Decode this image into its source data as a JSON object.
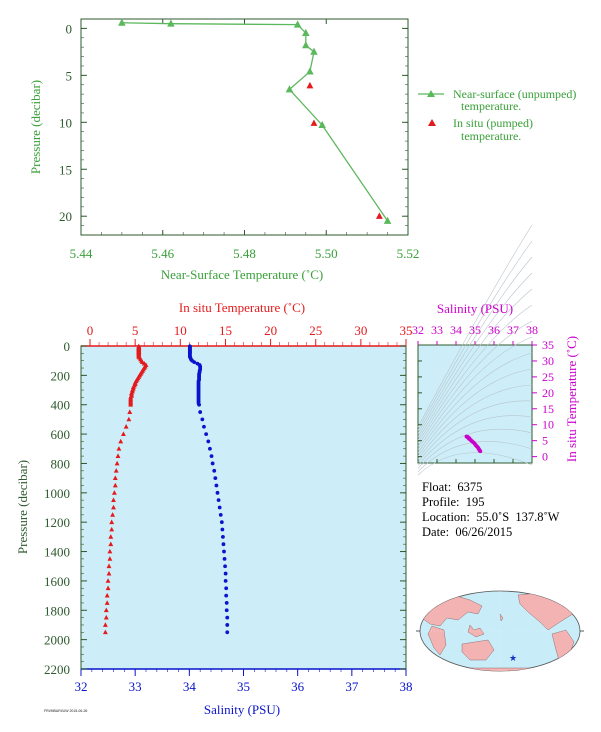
{
  "colors": {
    "green": "#5cb85c",
    "green_text": "#39a039",
    "axis_dark": "#2e5a2e",
    "red": "#e41a1c",
    "blue": "#0a14cc",
    "magenta": "#cc00cc",
    "plot_bg": "#cdeef8",
    "land": "#f4b3b3",
    "ocean": "#c8ecf8"
  },
  "chart_data": [
    {
      "id": "near_surface",
      "type": "scatter",
      "xlabel": "Near-Surface Temperature (˚C)",
      "ylabel": "Pressure (decibar)",
      "xlim": [
        5.44,
        5.52
      ],
      "ylim": [
        22,
        -1
      ],
      "x_ticks": [
        "5.44",
        "5.46",
        "5.48",
        "5.50",
        "5.52"
      ],
      "y_ticks": [
        "0",
        "5",
        "10",
        "15",
        "20"
      ],
      "series": [
        {
          "name": "Near-surface (unpumped) temperature.",
          "marker": "triangle-line",
          "points": [
            [
              5.45,
              -0.6
            ],
            [
              5.462,
              -0.5
            ],
            [
              5.493,
              -0.4
            ],
            [
              5.495,
              0.5
            ],
            [
              5.495,
              1.8
            ],
            [
              5.497,
              2.5
            ],
            [
              5.496,
              4.6
            ],
            [
              5.491,
              6.5
            ],
            [
              5.499,
              10.3
            ],
            [
              5.515,
              20.5
            ]
          ]
        },
        {
          "name": "In situ (pumped) temperature.",
          "marker": "triangle",
          "points": [
            [
              5.496,
              6.1
            ],
            [
              5.497,
              10.1
            ],
            [
              5.513,
              20.0
            ]
          ]
        }
      ]
    },
    {
      "id": "profile",
      "type": "scatter",
      "top_xlabel": "In situ Temperature (˚C)",
      "bottom_xlabel": "Salinity (PSU)",
      "ylabel": "Pressure (decibar)",
      "temperature_lim": [
        -1,
        35
      ],
      "salinity_lim": [
        32,
        38
      ],
      "ylim": [
        2200,
        0
      ],
      "temperature_ticks": [
        "0",
        "5",
        "10",
        "15",
        "20",
        "25",
        "30",
        "35"
      ],
      "salinity_ticks": [
        "32",
        "33",
        "34",
        "35",
        "36",
        "37",
        "38"
      ],
      "y_ticks": [
        "0",
        "200",
        "400",
        "600",
        "800",
        "1000",
        "1200",
        "1400",
        "1600",
        "1800",
        "2000",
        "2200"
      ],
      "series": [
        {
          "name": "In situ Temperature",
          "axis": "temperature",
          "points": [
            [
              5.4,
              2
            ],
            [
              5.4,
              6
            ],
            [
              5.4,
              10
            ],
            [
              5.4,
              14
            ],
            [
              5.4,
              18
            ],
            [
              5.4,
              22
            ],
            [
              5.4,
              26
            ],
            [
              5.4,
              30
            ],
            [
              5.4,
              34
            ],
            [
              5.4,
              38
            ],
            [
              5.4,
              42
            ],
            [
              5.4,
              46
            ],
            [
              5.4,
              50
            ],
            [
              5.4,
              56
            ],
            [
              5.4,
              62
            ],
            [
              5.4,
              68
            ],
            [
              5.4,
              74
            ],
            [
              5.5,
              80
            ],
            [
              5.6,
              90
            ],
            [
              5.7,
              100
            ],
            [
              5.8,
              110
            ],
            [
              6.0,
              120
            ],
            [
              6.2,
              130
            ],
            [
              6.1,
              140
            ],
            [
              6.0,
              150
            ],
            [
              5.9,
              160
            ],
            [
              5.8,
              170
            ],
            [
              5.7,
              180
            ],
            [
              5.6,
              190
            ],
            [
              5.5,
              200
            ],
            [
              5.4,
              210
            ],
            [
              5.3,
              220
            ],
            [
              5.2,
              230
            ],
            [
              5.1,
              240
            ],
            [
              5.0,
              250
            ],
            [
              5.0,
              260
            ],
            [
              4.9,
              270
            ],
            [
              4.8,
              280
            ],
            [
              4.8,
              290
            ],
            [
              4.7,
              300
            ],
            [
              4.7,
              310
            ],
            [
              4.6,
              320
            ],
            [
              4.6,
              330
            ],
            [
              4.6,
              340
            ],
            [
              4.5,
              350
            ],
            [
              4.5,
              360
            ],
            [
              4.5,
              370
            ],
            [
              4.5,
              380
            ],
            [
              4.5,
              390
            ],
            [
              4.5,
              400
            ],
            [
              4.4,
              450
            ],
            [
              4.3,
              500
            ],
            [
              4.0,
              550
            ],
            [
              3.7,
              600
            ],
            [
              3.4,
              650
            ],
            [
              3.2,
              700
            ],
            [
              3.1,
              750
            ],
            [
              3.0,
              800
            ],
            [
              2.9,
              850
            ],
            [
              2.8,
              900
            ],
            [
              2.8,
              950
            ],
            [
              2.7,
              1000
            ],
            [
              2.6,
              1050
            ],
            [
              2.6,
              1100
            ],
            [
              2.5,
              1150
            ],
            [
              2.4,
              1200
            ],
            [
              2.4,
              1250
            ],
            [
              2.3,
              1300
            ],
            [
              2.3,
              1350
            ],
            [
              2.2,
              1400
            ],
            [
              2.2,
              1450
            ],
            [
              2.1,
              1500
            ],
            [
              2.1,
              1550
            ],
            [
              2.0,
              1600
            ],
            [
              2.0,
              1650
            ],
            [
              1.9,
              1700
            ],
            [
              1.9,
              1750
            ],
            [
              1.8,
              1800
            ],
            [
              1.8,
              1850
            ],
            [
              1.7,
              1900
            ],
            [
              1.7,
              1950
            ]
          ]
        },
        {
          "name": "Salinity",
          "axis": "salinity",
          "points": [
            [
              34.01,
              2
            ],
            [
              34.01,
              6
            ],
            [
              34.01,
              10
            ],
            [
              34.01,
              14
            ],
            [
              34.01,
              18
            ],
            [
              34.01,
              22
            ],
            [
              34.01,
              26
            ],
            [
              34.01,
              30
            ],
            [
              34.01,
              34
            ],
            [
              34.01,
              38
            ],
            [
              34.01,
              42
            ],
            [
              34.01,
              46
            ],
            [
              34.01,
              50
            ],
            [
              34.01,
              56
            ],
            [
              34.01,
              62
            ],
            [
              34.01,
              68
            ],
            [
              34.01,
              74
            ],
            [
              34.02,
              80
            ],
            [
              34.03,
              90
            ],
            [
              34.05,
              100
            ],
            [
              34.09,
              110
            ],
            [
              34.15,
              120
            ],
            [
              34.19,
              130
            ],
            [
              34.2,
              140
            ],
            [
              34.2,
              150
            ],
            [
              34.2,
              160
            ],
            [
              34.19,
              170
            ],
            [
              34.19,
              180
            ],
            [
              34.18,
              190
            ],
            [
              34.18,
              200
            ],
            [
              34.18,
              210
            ],
            [
              34.18,
              220
            ],
            [
              34.18,
              230
            ],
            [
              34.17,
              240
            ],
            [
              34.17,
              250
            ],
            [
              34.17,
              260
            ],
            [
              34.17,
              270
            ],
            [
              34.17,
              280
            ],
            [
              34.17,
              290
            ],
            [
              34.17,
              300
            ],
            [
              34.17,
              310
            ],
            [
              34.17,
              320
            ],
            [
              34.17,
              330
            ],
            [
              34.17,
              340
            ],
            [
              34.17,
              350
            ],
            [
              34.17,
              360
            ],
            [
              34.17,
              370
            ],
            [
              34.17,
              380
            ],
            [
              34.17,
              390
            ],
            [
              34.18,
              400
            ],
            [
              34.2,
              450
            ],
            [
              34.24,
              500
            ],
            [
              34.27,
              550
            ],
            [
              34.31,
              600
            ],
            [
              34.35,
              650
            ],
            [
              34.38,
              700
            ],
            [
              34.41,
              750
            ],
            [
              34.43,
              800
            ],
            [
              34.46,
              850
            ],
            [
              34.48,
              900
            ],
            [
              34.5,
              950
            ],
            [
              34.52,
              1000
            ],
            [
              34.54,
              1050
            ],
            [
              34.56,
              1100
            ],
            [
              34.58,
              1150
            ],
            [
              34.6,
              1200
            ],
            [
              34.61,
              1250
            ],
            [
              34.62,
              1300
            ],
            [
              34.63,
              1350
            ],
            [
              34.64,
              1400
            ],
            [
              34.65,
              1450
            ],
            [
              34.66,
              1500
            ],
            [
              34.67,
              1550
            ],
            [
              34.67,
              1600
            ],
            [
              34.68,
              1650
            ],
            [
              34.68,
              1700
            ],
            [
              34.69,
              1750
            ],
            [
              34.69,
              1800
            ],
            [
              34.7,
              1850
            ],
            [
              34.7,
              1900
            ],
            [
              34.7,
              1950
            ]
          ]
        }
      ]
    },
    {
      "id": "ts_diagram",
      "type": "scatter",
      "xlabel": "Salinity (PSU)",
      "ylabel": "In situ Temperature (˚C)",
      "xlim": [
        32,
        38
      ],
      "ylim": [
        -2,
        35
      ],
      "x_ticks": [
        "32",
        "33",
        "34",
        "35",
        "36",
        "37",
        "38"
      ],
      "y_ticks": [
        "0",
        "5",
        "10",
        "15",
        "20",
        "25",
        "30",
        "35"
      ],
      "points": [
        [
          34.55,
          6.3
        ],
        [
          34.62,
          6.0
        ],
        [
          34.7,
          5.8
        ],
        [
          34.72,
          5.5
        ],
        [
          34.78,
          5.2
        ],
        [
          34.85,
          4.8
        ],
        [
          34.95,
          4.3
        ],
        [
          35.0,
          3.9
        ],
        [
          35.05,
          3.5
        ],
        [
          35.1,
          3.2
        ],
        [
          35.15,
          2.9
        ],
        [
          35.18,
          2.6
        ],
        [
          35.2,
          2.4
        ],
        [
          35.22,
          2.2
        ],
        [
          35.24,
          2.0
        ],
        [
          35.26,
          1.8
        ],
        [
          35.28,
          1.7
        ],
        [
          34.62,
          6.2
        ],
        [
          34.68,
          5.6
        ],
        [
          34.8,
          5.0
        ],
        [
          34.9,
          4.5
        ]
      ]
    }
  ],
  "legend": {
    "line1a": "Near-surface (unpumped)",
    "line1b": "temperature.",
    "line2a": "In situ (pumped)",
    "line2b": "temperature."
  },
  "float_info": {
    "float": "Float:  6375",
    "profile": "Profile:  195",
    "location": "Location:  55.0˚S  137.8˚W",
    "date": "Date:  06/26/2015"
  },
  "footer_text": "FRI/MBARI/UW 2015-06-26"
}
